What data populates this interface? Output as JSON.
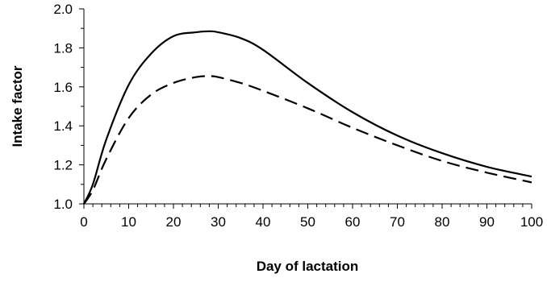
{
  "chart_data": {
    "type": "line",
    "title": "",
    "xlabel": "Day of lactation",
    "ylabel": "Intake factor",
    "xlim": [
      0,
      100
    ],
    "ylim": [
      1.0,
      2.0
    ],
    "x_ticks": [
      0,
      10,
      20,
      30,
      40,
      50,
      60,
      70,
      80,
      90,
      100
    ],
    "x_tick_labels": [
      "0",
      "10",
      "20",
      "30",
      "40",
      "50",
      "60",
      "70",
      "80",
      "90",
      "100"
    ],
    "y_ticks": [
      1.0,
      1.2,
      1.4,
      1.6,
      1.8,
      2.0
    ],
    "y_tick_labels": [
      "1.0",
      "1.2",
      "1.4",
      "1.6",
      "1.8",
      "2.0"
    ],
    "x_minor_step": 2,
    "y_minor_step": 0.1,
    "grid": false,
    "legend": "none",
    "series": [
      {
        "line_style": "solid",
        "color": "#000000",
        "x": [
          0,
          2,
          5,
          10,
          15,
          20,
          25,
          28,
          30,
          35,
          40,
          50,
          60,
          70,
          80,
          90,
          100
        ],
        "y": [
          1.0,
          1.1,
          1.33,
          1.61,
          1.77,
          1.86,
          1.88,
          1.885,
          1.88,
          1.85,
          1.79,
          1.62,
          1.47,
          1.35,
          1.26,
          1.19,
          1.14
        ]
      },
      {
        "line_style": "dashed",
        "color": "#000000",
        "x": [
          0,
          2,
          5,
          10,
          15,
          20,
          25,
          28,
          30,
          35,
          40,
          50,
          60,
          70,
          80,
          90,
          100
        ],
        "y": [
          1.0,
          1.07,
          1.23,
          1.44,
          1.56,
          1.62,
          1.65,
          1.655,
          1.65,
          1.62,
          1.58,
          1.49,
          1.39,
          1.3,
          1.22,
          1.16,
          1.11
        ]
      }
    ]
  }
}
